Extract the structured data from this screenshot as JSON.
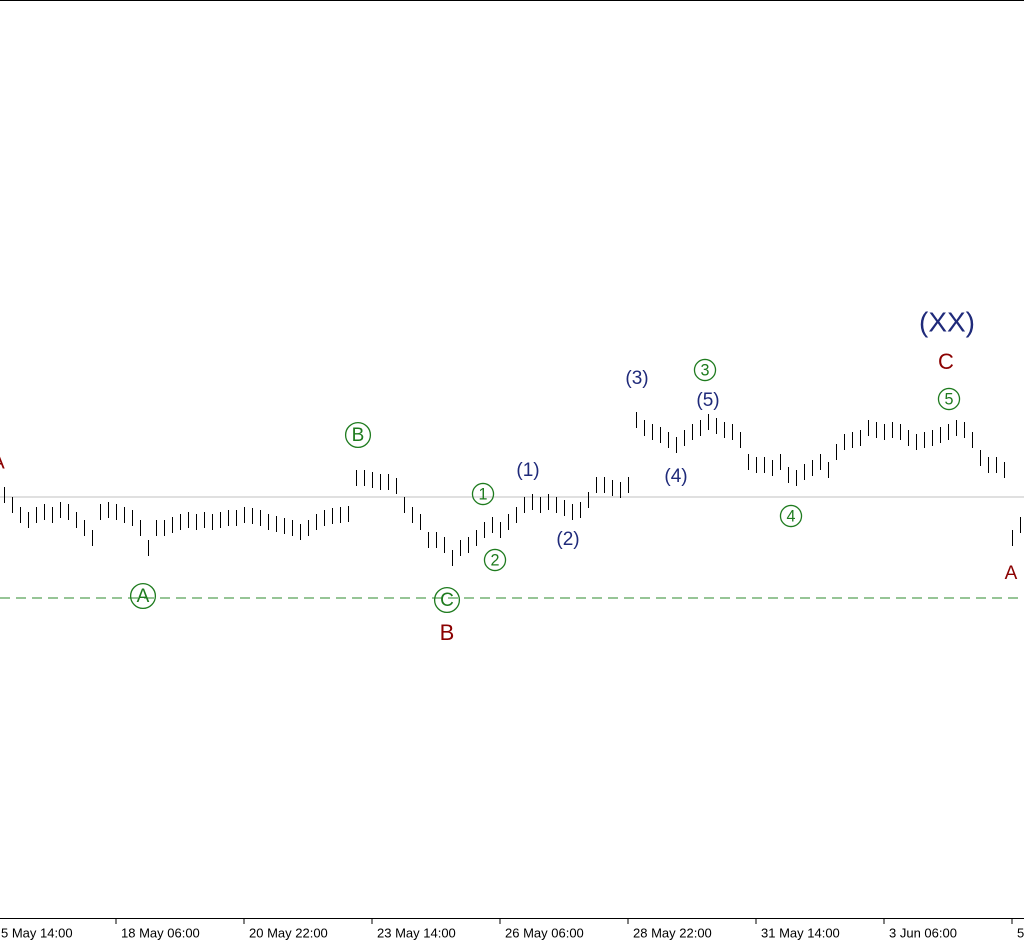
{
  "chart_data": {
    "type": "range-bar",
    "xlim": [
      -0.5,
      127.5
    ],
    "ylim": [
      0,
      918
    ],
    "xticks": [
      {
        "value": -1.5,
        "label": "5 May 14:00"
      },
      {
        "value": 14,
        "label": "18 May 06:00"
      },
      {
        "value": 30,
        "label": "20 May 22:00"
      },
      {
        "value": 46,
        "label": "23 May 14:00"
      },
      {
        "value": 62,
        "label": "26 May 06:00"
      },
      {
        "value": 78,
        "label": "28 May 22:00"
      },
      {
        "value": 94,
        "label": "31 May 14:00"
      },
      {
        "value": 110,
        "label": "3 Jun 06:00"
      },
      {
        "value": 126,
        "label": "5"
      }
    ],
    "color": "#000000",
    "high": [
      431,
      421,
      411,
      406,
      411,
      414,
      411,
      416,
      414,
      406,
      398,
      388,
      414,
      416,
      414,
      411,
      408,
      398,
      378,
      398,
      398,
      401,
      404,
      406,
      404,
      406,
      404,
      406,
      408,
      408,
      411,
      410,
      408,
      404,
      402,
      400,
      398,
      394,
      398,
      404,
      408,
      410,
      411,
      412,
      448,
      448,
      446,
      444,
      444,
      440,
      421,
      411,
      404,
      386,
      386,
      381,
      368,
      378,
      381,
      388,
      396,
      401,
      396,
      404,
      411,
      421,
      424,
      421,
      424,
      421,
      418,
      414,
      416,
      426,
      441,
      441,
      438,
      436,
      441,
      506,
      498,
      494,
      491,
      486,
      481,
      488,
      494,
      498,
      504,
      500,
      496,
      494,
      486,
      464,
      461,
      461,
      458,
      464,
      451,
      448,
      454,
      458,
      464,
      456,
      474,
      484,
      486,
      488,
      498,
      496,
      494,
      496,
      494,
      488,
      484,
      486,
      488,
      491,
      494,
      498,
      496,
      486,
      468,
      461,
      461,
      456,
      388,
      401
    ],
    "low": [
      415,
      405,
      395,
      390,
      395,
      398,
      395,
      400,
      398,
      390,
      382,
      372,
      398,
      400,
      398,
      395,
      392,
      382,
      362,
      382,
      382,
      385,
      388,
      390,
      388,
      390,
      388,
      390,
      392,
      392,
      395,
      394,
      392,
      388,
      386,
      384,
      382,
      378,
      382,
      388,
      392,
      394,
      395,
      396,
      432,
      432,
      430,
      428,
      428,
      424,
      405,
      395,
      388,
      370,
      370,
      365,
      352,
      362,
      365,
      372,
      380,
      385,
      380,
      388,
      395,
      405,
      408,
      405,
      408,
      405,
      402,
      398,
      400,
      410,
      425,
      425,
      422,
      420,
      425,
      490,
      482,
      478,
      475,
      470,
      465,
      472,
      478,
      482,
      488,
      484,
      480,
      478,
      470,
      448,
      445,
      445,
      442,
      448,
      435,
      432,
      438,
      442,
      448,
      440,
      458,
      468,
      470,
      472,
      482,
      480,
      478,
      480,
      478,
      472,
      468,
      470,
      472,
      475,
      478,
      482,
      480,
      470,
      452,
      445,
      445,
      440,
      372,
      385
    ],
    "hlines": [
      {
        "value": 421,
        "color": "#c0c0c0",
        "dashed": false
      },
      {
        "value": 320,
        "color": "#2e8b2e",
        "dashed": true
      }
    ],
    "annotations": [
      {
        "text": "A",
        "color": "#8b0000",
        "circled": false
      },
      {
        "text": "A",
        "color": "#1e7b1e",
        "circled": true
      },
      {
        "text": "B",
        "color": "#1e7b1e",
        "circled": true
      },
      {
        "text": "C",
        "color": "#1e7b1e",
        "circled": true
      },
      {
        "text": "B",
        "color": "#8b0000",
        "circled": false
      },
      {
        "text": "1",
        "color": "#1e7b1e",
        "circled": true
      },
      {
        "text": "2",
        "color": "#1e7b1e",
        "circled": true
      },
      {
        "text": "(1)",
        "color": "#1f2a7a",
        "circled": false
      },
      {
        "text": "(2)",
        "color": "#1f2a7a",
        "circled": false
      },
      {
        "text": "(3)",
        "color": "#1f2a7a",
        "circled": false
      },
      {
        "text": "(4)",
        "color": "#1f2a7a",
        "circled": false
      },
      {
        "text": "3",
        "color": "#1e7b1e",
        "circled": true
      },
      {
        "text": "(5)",
        "color": "#1f2a7a",
        "circled": false
      },
      {
        "text": "4",
        "color": "#1e7b1e",
        "circled": true
      },
      {
        "text": "(XX)",
        "color": "#1f2a7a",
        "circled": false
      },
      {
        "text": "C",
        "color": "#8b0000",
        "circled": false
      },
      {
        "text": "5",
        "color": "#1e7b1e",
        "circled": true
      },
      {
        "text": "A",
        "color": "#8b0000",
        "circled": false
      }
    ]
  }
}
